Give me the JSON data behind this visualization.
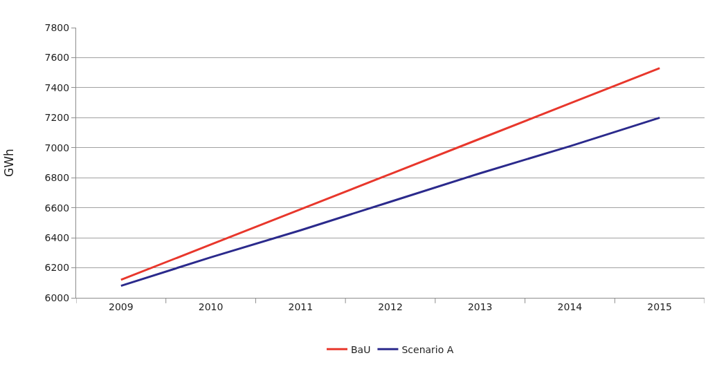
{
  "chart_data": {
    "type": "line",
    "ylabel": "GWh",
    "categories": [
      "2009",
      "2010",
      "2011",
      "2012",
      "2013",
      "2014",
      "2015"
    ],
    "series": [
      {
        "name": "BaU",
        "color": "#e8372c",
        "values": [
          6120,
          6355,
          6590,
          6825,
          7060,
          7295,
          7530
        ]
      },
      {
        "name": "Scenario A",
        "color": "#2b2a8c",
        "values": [
          6080,
          6270,
          6450,
          6640,
          6830,
          7010,
          7200
        ]
      }
    ],
    "ylim": [
      6000,
      7800
    ],
    "yticks": [
      6000,
      6200,
      6400,
      6600,
      6800,
      7000,
      7200,
      7400,
      7600,
      7800
    ],
    "grid": "y",
    "legend": "bottom",
    "marker": "none",
    "line_style": "solid"
  }
}
